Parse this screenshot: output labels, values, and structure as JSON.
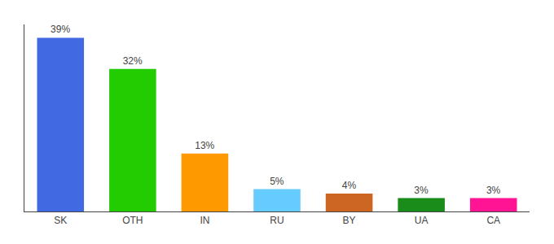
{
  "chart_data": {
    "type": "bar",
    "categories": [
      "SK",
      "OTH",
      "IN",
      "RU",
      "BY",
      "UA",
      "CA"
    ],
    "values": [
      39,
      32,
      13,
      5,
      4,
      3,
      3
    ],
    "value_labels": [
      "39%",
      "32%",
      "13%",
      "5%",
      "4%",
      "3%",
      "3%"
    ],
    "data_labels": true,
    "colors": [
      "#4169e1",
      "#22cc00",
      "#ff9900",
      "#66ccff",
      "#cc6622",
      "#1a8c1a",
      "#ff1493"
    ],
    "ylim": [
      0,
      42
    ],
    "grid": false,
    "tick_labels": "x"
  }
}
